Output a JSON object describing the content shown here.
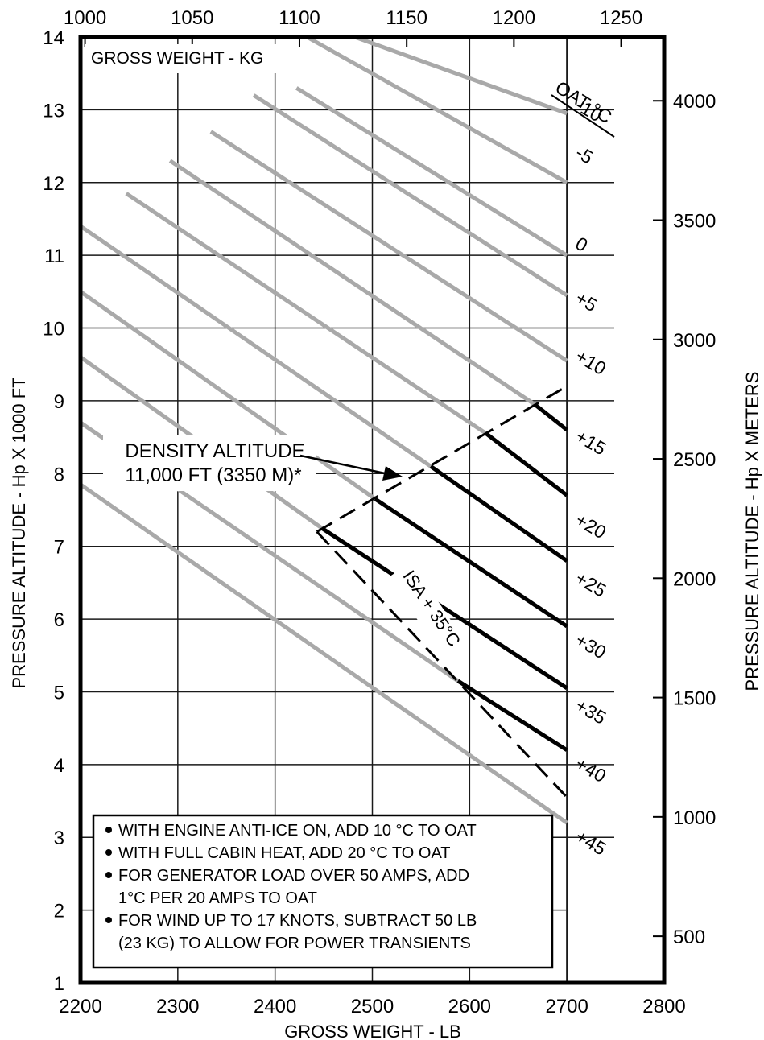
{
  "chart_data": {
    "type": "line",
    "title": "",
    "xlabel": "GROSS WEIGHT - LB",
    "ylabel": "PRESSURE ALTITUDE - Hp X 1000 FT",
    "x2label": "GROSS WEIGHT - KG",
    "y2label": "PRESSURE ALTITUDE - Hp X METERS",
    "xlim": [
      2200,
      2800
    ],
    "ylim": [
      1,
      14
    ],
    "xticks": [
      "2200",
      "2300",
      "2400",
      "2500",
      "2600",
      "2700",
      "2800"
    ],
    "yticks": [
      "1",
      "2",
      "3",
      "4",
      "5",
      "6",
      "7",
      "8",
      "9",
      "10",
      "11",
      "12",
      "13",
      "14"
    ],
    "x2ticks": [
      "1000",
      "1050",
      "1100",
      "1150",
      "1200",
      "1250"
    ],
    "y2ticks": [
      "500",
      "1000",
      "1500",
      "2000",
      "2500",
      "3000",
      "3500",
      "4000"
    ],
    "grid": true,
    "legend_title": "OAT °C",
    "series": [
      {
        "name": "-10",
        "points": [
          [
            2482,
            14.0
          ],
          [
            2700,
            12.95
          ]
        ]
      },
      {
        "name": "-5",
        "points": [
          [
            2433,
            14.0
          ],
          [
            2700,
            12.0
          ]
        ]
      },
      {
        "name": "0",
        "points": [
          [
            2422,
            13.3
          ],
          [
            2700,
            11.0
          ]
        ]
      },
      {
        "name": "+5",
        "points": [
          [
            2378,
            13.2
          ],
          [
            2700,
            10.45
          ]
        ]
      },
      {
        "name": "+10",
        "points": [
          [
            2334,
            12.7
          ],
          [
            2700,
            9.55
          ]
        ]
      },
      {
        "name": "+15",
        "points": [
          [
            2292,
            12.3
          ],
          [
            2667,
            8.95
          ],
          [
            2700,
            8.6
          ]
        ]
      },
      {
        "name": "+20",
        "points": [
          [
            2247,
            11.85
          ],
          [
            2617,
            8.55
          ],
          [
            2700,
            7.7
          ]
        ]
      },
      {
        "name": "+25",
        "points": [
          [
            2200,
            11.4
          ],
          [
            2560,
            8.1
          ],
          [
            2700,
            6.8
          ]
        ]
      },
      {
        "name": "+30",
        "points": [
          [
            2200,
            10.5
          ],
          [
            2503,
            7.65
          ],
          [
            2700,
            5.9
          ]
        ]
      },
      {
        "name": "+35",
        "points": [
          [
            2200,
            9.6
          ],
          [
            2448,
            7.25
          ],
          [
            2700,
            5.05
          ]
        ]
      },
      {
        "name": "+40",
        "points": [
          [
            2200,
            8.7
          ],
          [
            2588,
            5.15
          ],
          [
            2700,
            4.2
          ]
        ]
      },
      {
        "name": "+45",
        "points": [
          [
            2200,
            7.85
          ],
          [
            2700,
            3.2
          ]
        ]
      }
    ],
    "dashed_lines": [
      {
        "name": "density-altitude-line",
        "points": [
          [
            2443,
            7.2
          ],
          [
            2700,
            9.2
          ]
        ]
      },
      {
        "name": "isa-plus-35-line",
        "points": [
          [
            2443,
            7.2
          ],
          [
            2700,
            3.55
          ]
        ]
      }
    ],
    "annotations": {
      "density_altitude_line1": "DENSITY ALTITUDE",
      "density_altitude_line2": "11,000 FT (3350 M)*",
      "isa_label": "ISA + 35°C"
    },
    "notes": [
      "WITH ENGINE ANTI-ICE ON, ADD 10 °C TO OAT",
      "WITH FULL CABIN HEAT, ADD 20 °C TO OAT",
      "FOR GENERATOR LOAD OVER 50 AMPS, ADD",
      "1°C PER 20 AMPS TO OAT",
      "FOR WIND UP TO 17 KNOTS, SUBTRACT 50 LB",
      "(23 KG) TO ALLOW FOR POWER TRANSIENTS"
    ],
    "colors": {
      "axis": "#000000",
      "grid": "#1a1a1a",
      "limited_line": "#a9a9a9",
      "bold_line": "#000000"
    }
  }
}
